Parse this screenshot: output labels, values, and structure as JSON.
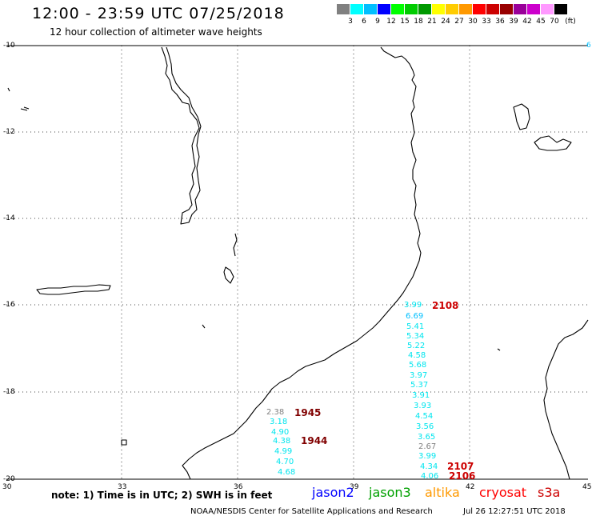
{
  "header": {
    "title": "12:00 - 23:59 UTC 07/25/2018",
    "subtitle": "12 hour collection of altimeter wave heights"
  },
  "legend": {
    "unit": "(ft)",
    "colors": [
      "#808080",
      "#00ffff",
      "#00bfff",
      "#0000ff",
      "#00ff00",
      "#00cc00",
      "#009900",
      "#ffff00",
      "#ffcc00",
      "#ff9900",
      "#ff0000",
      "#cc0000",
      "#990000",
      "#990099",
      "#cc00cc",
      "#ff99ff",
      "#000000"
    ],
    "labels": [
      "3",
      "6",
      "9",
      "12",
      "15",
      "18",
      "21",
      "24",
      "27",
      "30",
      "33",
      "36",
      "39",
      "42",
      "45",
      "70"
    ]
  },
  "axes": {
    "lon_labels": [
      "30",
      "33",
      "36",
      "39",
      "42",
      "45"
    ],
    "lat_labels": [
      "-10",
      "-12",
      "-14",
      "-16",
      "-18",
      "-20"
    ]
  },
  "observations": [
    {
      "v": "3.99",
      "c": "#00e5ee"
    },
    {
      "v": "6.69",
      "c": "#00bfff"
    },
    {
      "v": "5.41",
      "c": "#00e5ee"
    },
    {
      "v": "5.34",
      "c": "#00e5ee"
    },
    {
      "v": "5.22",
      "c": "#00e5ee"
    },
    {
      "v": "4.58",
      "c": "#00e5ee"
    },
    {
      "v": "5.68",
      "c": "#00e5ee"
    },
    {
      "v": "3.97",
      "c": "#00e5ee"
    },
    {
      "v": "5.37",
      "c": "#00e5ee"
    },
    {
      "v": "3.91",
      "c": "#00e5ee"
    },
    {
      "v": "3.93",
      "c": "#00e5ee"
    },
    {
      "v": "4.54",
      "c": "#00e5ee"
    },
    {
      "v": "3.56",
      "c": "#00e5ee"
    },
    {
      "v": "3.65",
      "c": "#00e5ee"
    },
    {
      "v": "2.67",
      "c": "#808080"
    },
    {
      "v": "3.99",
      "c": "#00e5ee"
    },
    {
      "v": "4.34",
      "c": "#00e5ee"
    },
    {
      "v": "4.06",
      "c": "#00e5ee"
    },
    {
      "v": "2.38",
      "c": "#808080"
    },
    {
      "v": "3.18",
      "c": "#00e5ee"
    },
    {
      "v": "4.90",
      "c": "#00e5ee"
    },
    {
      "v": "4.38",
      "c": "#00e5ee"
    },
    {
      "v": "4.99",
      "c": "#00e5ee"
    },
    {
      "v": "4.70",
      "c": "#00e5ee"
    },
    {
      "v": "4.68",
      "c": "#00e5ee"
    }
  ],
  "times": [
    {
      "t": "2108",
      "c": "#cc0000"
    },
    {
      "t": "2107",
      "c": "#cc0000"
    },
    {
      "t": "2106",
      "c": "#cc0000"
    },
    {
      "t": "1945",
      "c": "#800000"
    },
    {
      "t": "1944",
      "c": "#800000"
    }
  ],
  "footer": {
    "note": "note: 1) Time is in UTC; 2) SWH is in feet",
    "missions": [
      {
        "name": "jason2",
        "color": "#0000ff"
      },
      {
        "name": "jason3",
        "color": "#00a000"
      },
      {
        "name": "altika",
        "color": "#ff9900"
      },
      {
        "name": "cryosat",
        "color": "#ff0000"
      },
      {
        "name": "s3a",
        "color": "#cc0000"
      }
    ],
    "credit": "NOAA/NESDIS Center for Satellite Applications and Research",
    "timestamp": "Jul 26 12:27:51 UTC 2018"
  }
}
